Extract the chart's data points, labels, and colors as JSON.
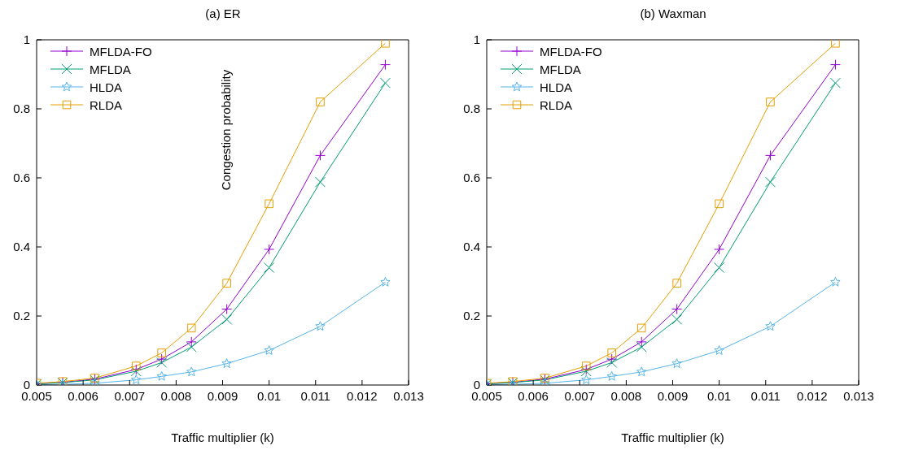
{
  "chart_data": [
    {
      "type": "line",
      "title": "(a) ER",
      "xlabel": "Traffic multiplier (k)",
      "ylabel": "Congestion probability",
      "x": [
        0.005,
        0.00556,
        0.00625,
        0.00714,
        0.00769,
        0.00833,
        0.00909,
        0.01,
        0.0111,
        0.0125
      ],
      "xlim": [
        0.005,
        0.013
      ],
      "xticks": [
        0.005,
        0.006,
        0.007,
        0.008,
        0.009,
        0.01,
        0.011,
        0.012,
        0.013
      ],
      "ylim": [
        0,
        1
      ],
      "yticks": [
        0,
        0.2,
        0.4,
        0.6,
        0.8,
        1
      ],
      "grid": false,
      "legend": "top left",
      "series": [
        {
          "name": "MFLDA-FO",
          "color": "#9400d3",
          "marker": "cross",
          "values": [
            0.004,
            0.008,
            0.017,
            0.045,
            0.075,
            0.125,
            0.22,
            0.393,
            0.665,
            0.928
          ]
        },
        {
          "name": "MFLDA",
          "color": "#009e73",
          "marker": "x",
          "values": [
            0.003,
            0.007,
            0.015,
            0.04,
            0.065,
            0.11,
            0.19,
            0.34,
            0.588,
            0.875
          ]
        },
        {
          "name": "HLDA",
          "color": "#56b4e9",
          "marker": "star",
          "values": [
            0.001,
            0.002,
            0.005,
            0.015,
            0.025,
            0.038,
            0.062,
            0.1,
            0.17,
            0.298
          ]
        },
        {
          "name": "RLDA",
          "color": "#e69f00",
          "marker": "square",
          "values": [
            0.005,
            0.01,
            0.02,
            0.055,
            0.093,
            0.165,
            0.295,
            0.525,
            0.82,
            0.99
          ]
        }
      ]
    },
    {
      "type": "line",
      "title": "(b) Waxman",
      "xlabel": "Traffic multiplier (k)",
      "x": [
        0.005,
        0.00556,
        0.00625,
        0.00714,
        0.00769,
        0.00833,
        0.00909,
        0.01,
        0.0111,
        0.0125
      ],
      "xlim": [
        0.005,
        0.013
      ],
      "xticks": [
        0.005,
        0.006,
        0.007,
        0.008,
        0.009,
        0.01,
        0.011,
        0.012,
        0.013
      ],
      "ylim": [
        0,
        1
      ],
      "yticks": [
        0,
        0.2,
        0.4,
        0.6,
        0.8,
        1
      ],
      "grid": false,
      "legend": "top left",
      "series": [
        {
          "name": "MFLDA-FO",
          "color": "#9400d3",
          "marker": "cross",
          "values": [
            0.004,
            0.008,
            0.017,
            0.045,
            0.075,
            0.125,
            0.22,
            0.393,
            0.665,
            0.928
          ]
        },
        {
          "name": "MFLDA",
          "color": "#009e73",
          "marker": "x",
          "values": [
            0.003,
            0.007,
            0.015,
            0.04,
            0.065,
            0.11,
            0.19,
            0.34,
            0.588,
            0.875
          ]
        },
        {
          "name": "HLDA",
          "color": "#56b4e9",
          "marker": "star",
          "values": [
            0.001,
            0.002,
            0.005,
            0.015,
            0.025,
            0.038,
            0.062,
            0.1,
            0.17,
            0.298
          ]
        },
        {
          "name": "RLDA",
          "color": "#e69f00",
          "marker": "square",
          "values": [
            0.005,
            0.01,
            0.02,
            0.055,
            0.093,
            0.165,
            0.295,
            0.525,
            0.82,
            0.99
          ]
        }
      ]
    }
  ]
}
